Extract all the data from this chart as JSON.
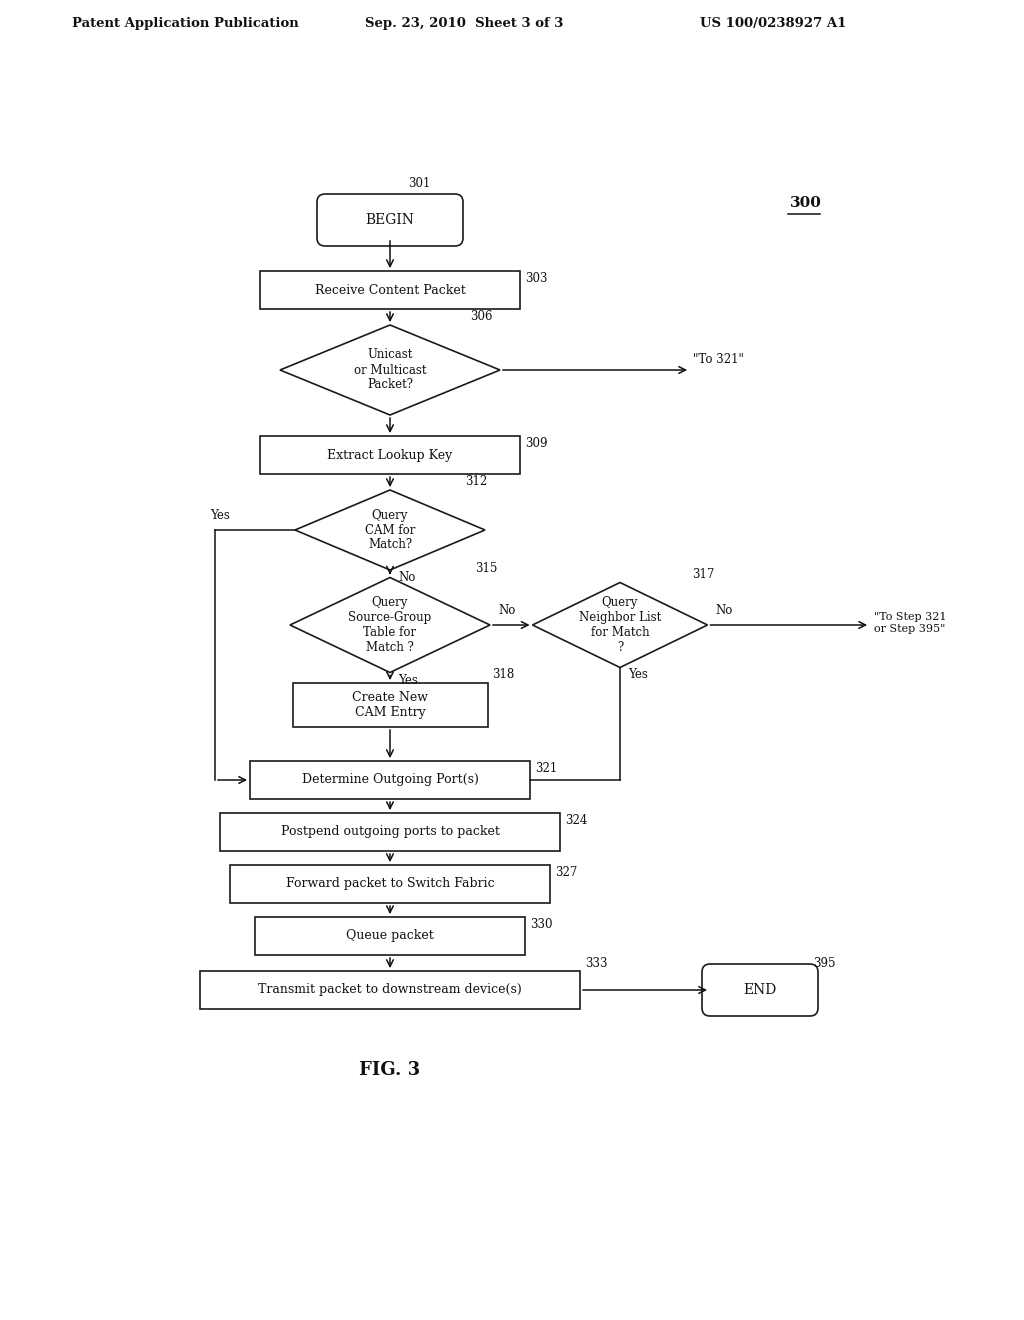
{
  "bg_color": "#ffffff",
  "header_left": "Patent Application Publication",
  "header_mid": "Sep. 23, 2010  Sheet 3 of 3",
  "header_right": "US 100/0238927 A1",
  "fig_label": "FIG. 3",
  "diagram_label": "300"
}
